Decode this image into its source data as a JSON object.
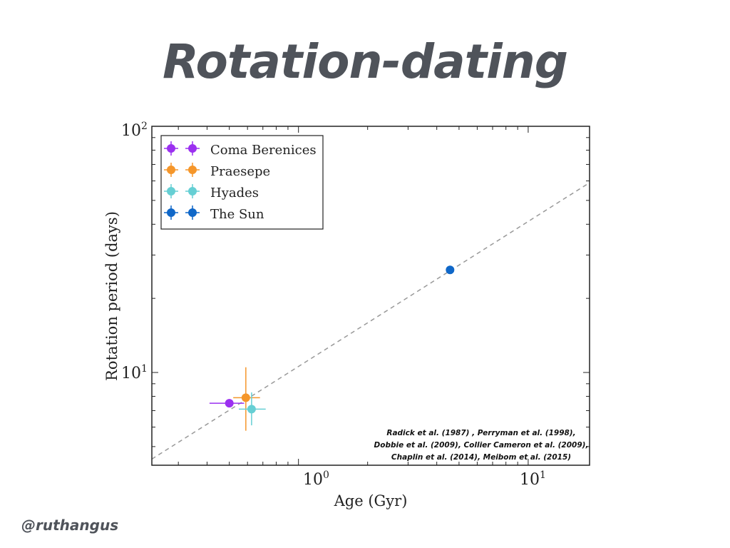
{
  "slide": {
    "title": "Rotation-dating",
    "handle": "@ruthangus"
  },
  "chart_data": {
    "type": "scatter",
    "title": "",
    "xlabel": "Age (Gyr)",
    "ylabel": "Rotation period (days)",
    "xscale": "log",
    "yscale": "log",
    "xlim": [
      0.23,
      18.5
    ],
    "ylim": [
      4.2,
      100
    ],
    "x_tick_labels": [
      {
        "base": "10",
        "exp": "0"
      },
      {
        "base": "10",
        "exp": "1"
      }
    ],
    "y_tick_labels": [
      {
        "base": "10",
        "exp": "1"
      },
      {
        "base": "10",
        "exp": "2"
      }
    ],
    "legend_position": "top-left",
    "series": [
      {
        "name": "Coma Berenices",
        "color": "#9b30f0",
        "x": 0.5,
        "y": 7.5,
        "xerr": [
          0.41,
          0.58
        ],
        "yerr": [
          7.5,
          7.5
        ]
      },
      {
        "name": "Praesepe",
        "color": "#f5962a",
        "x": 0.59,
        "y": 7.9,
        "xerr": [
          0.52,
          0.68
        ],
        "yerr": [
          5.8,
          10.5
        ]
      },
      {
        "name": "Hyades",
        "color": "#66cfd4",
        "x": 0.625,
        "y": 7.1,
        "xerr": [
          0.55,
          0.72
        ],
        "yerr": [
          6.1,
          8.3
        ]
      },
      {
        "name": "The Sun",
        "color": "#0f67c8",
        "x": 4.57,
        "y": 26.1,
        "xerr": [
          4.57,
          4.57
        ],
        "yerr": [
          26.1,
          26.1
        ]
      }
    ],
    "fit_line": {
      "style": "dashed",
      "color": "#999999",
      "from": {
        "x": 0.23,
        "y": 4.45
      },
      "to": {
        "x": 18.5,
        "y": 59
      }
    },
    "annotation": [
      "Radick et al. (1987) , Perryman et al. (1998),",
      "Dobbie et al. (2009), Collier Cameron et al. (2009),",
      "Chaplin et al. (2014), Meibom et al. (2015)"
    ]
  }
}
